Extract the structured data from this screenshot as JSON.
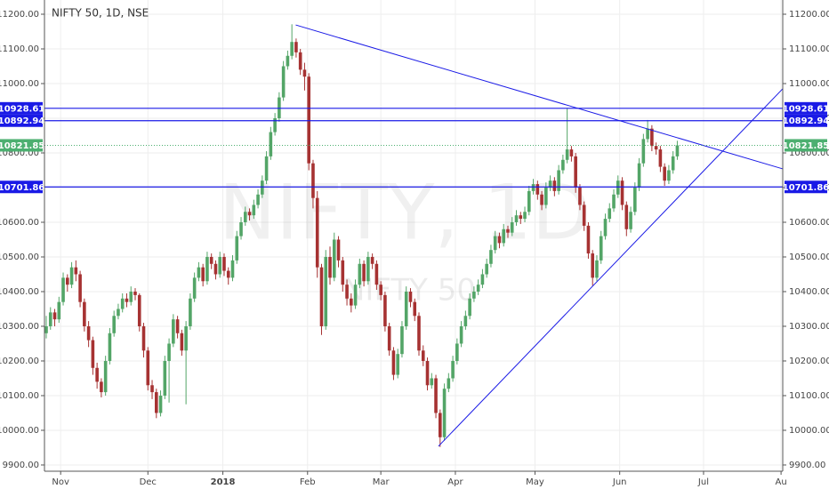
{
  "chart_data": {
    "type": "candlestick",
    "title": "NIFTY 50, 1D, NSE",
    "watermark": "NIFTY, 1D",
    "watermark_subtitle": "NIFTY 50",
    "up_color": "#53a567",
    "down_color": "#a63232",
    "line_color": "#1a1ae6",
    "last_color": "#4caf70",
    "grid": true,
    "ylim": [
      9882,
      11241
    ],
    "yticks": [
      {
        "value": 9900,
        "label": "9900.00"
      },
      {
        "value": 10000,
        "label": "10000.00"
      },
      {
        "value": 10100,
        "label": "10100.00"
      },
      {
        "value": 10200,
        "label": "10200.00"
      },
      {
        "value": 10300,
        "label": "10300.00"
      },
      {
        "value": 10400,
        "label": "10400.00"
      },
      {
        "value": 10500,
        "label": "10500.00"
      },
      {
        "value": 10600,
        "label": "10600.00"
      },
      {
        "value": 10700,
        "label": "10700.00"
      },
      {
        "value": 10800,
        "label": "10800.00"
      },
      {
        "value": 10900,
        "label": "10900.00"
      },
      {
        "value": 11000,
        "label": "11000.00"
      },
      {
        "value": 11100,
        "label": "11100.00"
      },
      {
        "value": 11200,
        "label": "11200.00"
      }
    ],
    "xlim": [
      -0.42,
      173.9
    ],
    "xticks": [
      {
        "value": 3.4,
        "label": "Nov"
      },
      {
        "value": 24,
        "label": "Dec"
      },
      {
        "value": 41.7,
        "label": "2018"
      },
      {
        "value": 61.7,
        "label": "Feb"
      },
      {
        "value": 79,
        "label": "Mar"
      },
      {
        "value": 96.6,
        "label": "Apr"
      },
      {
        "value": 115.4,
        "label": "May"
      },
      {
        "value": 135.4,
        "label": "Jun"
      },
      {
        "value": 155.2,
        "label": "Jul"
      },
      {
        "value": 173.5,
        "label": "Au"
      }
    ],
    "levels": [
      10928.61,
      10892.94,
      10701.86
    ],
    "last_price": 10821.85,
    "trendlines": [
      {
        "x": [
          58.9,
          173.9
        ],
        "y": [
          11169,
          10754
        ]
      },
      {
        "x": [
          92.6,
          173.9
        ],
        "y": [
          9954,
          10985
        ]
      }
    ],
    "ohlc": [
      [
        10280,
        10330,
        10265,
        10300
      ],
      [
        10300,
        10355,
        10290,
        10340
      ],
      [
        10340,
        10350,
        10300,
        10320
      ],
      [
        10320,
        10385,
        10310,
        10370
      ],
      [
        10370,
        10455,
        10360,
        10440
      ],
      [
        10440,
        10450,
        10400,
        10420
      ],
      [
        10420,
        10485,
        10410,
        10470
      ],
      [
        10470,
        10490,
        10430,
        10450
      ],
      [
        10450,
        10460,
        10355,
        10370
      ],
      [
        10370,
        10380,
        10285,
        10300
      ],
      [
        10300,
        10315,
        10240,
        10260
      ],
      [
        10260,
        10270,
        10160,
        10180
      ],
      [
        10180,
        10195,
        10120,
        10140
      ],
      [
        10140,
        10150,
        10095,
        10110
      ],
      [
        10110,
        10215,
        10100,
        10200
      ],
      [
        10200,
        10295,
        10190,
        10280
      ],
      [
        10280,
        10345,
        10270,
        10330
      ],
      [
        10330,
        10365,
        10320,
        10350
      ],
      [
        10350,
        10395,
        10340,
        10380
      ],
      [
        10380,
        10395,
        10355,
        10370
      ],
      [
        10370,
        10415,
        10360,
        10400
      ],
      [
        10400,
        10410,
        10375,
        10390
      ],
      [
        10390,
        10395,
        10285,
        10300
      ],
      [
        10300,
        10310,
        10210,
        10230
      ],
      [
        10230,
        10240,
        10115,
        10130
      ],
      [
        10130,
        10145,
        10090,
        10110
      ],
      [
        10110,
        10120,
        10035,
        10050
      ],
      [
        10050,
        10115,
        10040,
        10100
      ],
      [
        10100,
        10215,
        10090,
        10200
      ],
      [
        10200,
        10265,
        10080,
        10250
      ],
      [
        10250,
        10335,
        10240,
        10320
      ],
      [
        10320,
        10330,
        10265,
        10280
      ],
      [
        10280,
        10290,
        10215,
        10230
      ],
      [
        10230,
        10315,
        10075,
        10300
      ],
      [
        10300,
        10395,
        10290,
        10380
      ],
      [
        10380,
        10455,
        10370,
        10440
      ],
      [
        10440,
        10485,
        10430,
        10470
      ],
      [
        10470,
        10480,
        10415,
        10430
      ],
      [
        10430,
        10515,
        10420,
        10500
      ],
      [
        10500,
        10510,
        10465,
        10480
      ],
      [
        10480,
        10490,
        10435,
        10450
      ],
      [
        10450,
        10515,
        10440,
        10500
      ],
      [
        10500,
        10510,
        10445,
        10460
      ],
      [
        10460,
        10470,
        10420,
        10440
      ],
      [
        10440,
        10505,
        10430,
        10490
      ],
      [
        10490,
        10575,
        10480,
        10560
      ],
      [
        10560,
        10615,
        10550,
        10600
      ],
      [
        10600,
        10645,
        10590,
        10630
      ],
      [
        10630,
        10640,
        10605,
        10620
      ],
      [
        10620,
        10665,
        10610,
        10650
      ],
      [
        10650,
        10695,
        10640,
        10680
      ],
      [
        10680,
        10735,
        10670,
        10720
      ],
      [
        10720,
        10805,
        10710,
        10790
      ],
      [
        10790,
        10875,
        10780,
        10860
      ],
      [
        10860,
        10915,
        10850,
        10900
      ],
      [
        10900,
        10975,
        10890,
        10960
      ],
      [
        10960,
        11065,
        10950,
        11050
      ],
      [
        11050,
        11095,
        11040,
        11080
      ],
      [
        11080,
        11171,
        11070,
        11120
      ],
      [
        11120,
        11130,
        11075,
        11090
      ],
      [
        11090,
        11100,
        11025,
        11040
      ],
      [
        11040,
        11060,
        10980,
        11020
      ],
      [
        11020,
        11030,
        10750,
        10770
      ],
      [
        10770,
        10780,
        10640,
        10670
      ],
      [
        10670,
        10690,
        10440,
        10470
      ],
      [
        10470,
        10480,
        10275,
        10300
      ],
      [
        10300,
        10520,
        10290,
        10500
      ],
      [
        10500,
        10530,
        10420,
        10440
      ],
      [
        10440,
        10570,
        10430,
        10550
      ],
      [
        10550,
        10560,
        10470,
        10490
      ],
      [
        10490,
        10500,
        10400,
        10420
      ],
      [
        10420,
        10435,
        10360,
        10380
      ],
      [
        10380,
        10395,
        10340,
        10360
      ],
      [
        10360,
        10435,
        10350,
        10420
      ],
      [
        10420,
        10495,
        10410,
        10480
      ],
      [
        10480,
        10490,
        10415,
        10430
      ],
      [
        10430,
        10515,
        10420,
        10500
      ],
      [
        10500,
        10510,
        10465,
        10480
      ],
      [
        10480,
        10490,
        10405,
        10420
      ],
      [
        10420,
        10430,
        10375,
        10390
      ],
      [
        10390,
        10400,
        10285,
        10300
      ],
      [
        10300,
        10310,
        10215,
        10230
      ],
      [
        10230,
        10240,
        10145,
        10160
      ],
      [
        10160,
        10235,
        10150,
        10220
      ],
      [
        10220,
        10315,
        10210,
        10300
      ],
      [
        10300,
        10415,
        10290,
        10400
      ],
      [
        10400,
        10410,
        10355,
        10370
      ],
      [
        10370,
        10380,
        10315,
        10330
      ],
      [
        10330,
        10340,
        10215,
        10230
      ],
      [
        10230,
        10245,
        10185,
        10200
      ],
      [
        10200,
        10210,
        10115,
        10130
      ],
      [
        10130,
        10165,
        10120,
        10150
      ],
      [
        10150,
        10160,
        10035,
        10050
      ],
      [
        10050,
        10060,
        9952,
        9980
      ],
      [
        9980,
        10135,
        9970,
        10120
      ],
      [
        10120,
        10165,
        10110,
        10150
      ],
      [
        10150,
        10215,
        10140,
        10200
      ],
      [
        10200,
        10265,
        10190,
        10250
      ],
      [
        10250,
        10315,
        10240,
        10300
      ],
      [
        10300,
        10345,
        10290,
        10330
      ],
      [
        10330,
        10395,
        10320,
        10380
      ],
      [
        10380,
        10415,
        10370,
        10400
      ],
      [
        10400,
        10435,
        10390,
        10420
      ],
      [
        10420,
        10465,
        10410,
        10450
      ],
      [
        10450,
        10495,
        10440,
        10480
      ],
      [
        10480,
        10535,
        10470,
        10520
      ],
      [
        10520,
        10575,
        10510,
        10560
      ],
      [
        10560,
        10570,
        10525,
        10540
      ],
      [
        10540,
        10595,
        10530,
        10580
      ],
      [
        10580,
        10590,
        10555,
        10570
      ],
      [
        10570,
        10615,
        10560,
        10600
      ],
      [
        10600,
        10635,
        10590,
        10620
      ],
      [
        10620,
        10630,
        10595,
        10610
      ],
      [
        10610,
        10645,
        10600,
        10630
      ],
      [
        10630,
        10705,
        10620,
        10690
      ],
      [
        10690,
        10725,
        10680,
        10710
      ],
      [
        10710,
        10720,
        10665,
        10680
      ],
      [
        10680,
        10690,
        10635,
        10650
      ],
      [
        10650,
        10715,
        10640,
        10700
      ],
      [
        10700,
        10735,
        10690,
        10720
      ],
      [
        10720,
        10730,
        10675,
        10690
      ],
      [
        10690,
        10765,
        10680,
        10750
      ],
      [
        10750,
        10795,
        10740,
        10780
      ],
      [
        10780,
        10929,
        10770,
        10810
      ],
      [
        10810,
        10820,
        10775,
        10790
      ],
      [
        10790,
        10800,
        10685,
        10700
      ],
      [
        10700,
        10710,
        10635,
        10650
      ],
      [
        10650,
        10660,
        10575,
        10590
      ],
      [
        10590,
        10600,
        10495,
        10510
      ],
      [
        10510,
        10520,
        10417,
        10440
      ],
      [
        10440,
        10505,
        10430,
        10490
      ],
      [
        10490,
        10575,
        10480,
        10560
      ],
      [
        10560,
        10625,
        10550,
        10610
      ],
      [
        10610,
        10655,
        10600,
        10640
      ],
      [
        10640,
        10695,
        10630,
        10680
      ],
      [
        10680,
        10735,
        10670,
        10720
      ],
      [
        10720,
        10730,
        10635,
        10650
      ],
      [
        10650,
        10660,
        10560,
        10580
      ],
      [
        10580,
        10645,
        10570,
        10630
      ],
      [
        10630,
        10715,
        10620,
        10700
      ],
      [
        10700,
        10785,
        10690,
        10770
      ],
      [
        10770,
        10855,
        10760,
        10840
      ],
      [
        10840,
        10895,
        10830,
        10870
      ],
      [
        10870,
        10880,
        10805,
        10820
      ],
      [
        10820,
        10830,
        10795,
        10810
      ],
      [
        10810,
        10820,
        10745,
        10760
      ],
      [
        10760,
        10770,
        10705,
        10720
      ],
      [
        10720,
        10765,
        10710,
        10750
      ],
      [
        10750,
        10805,
        10740,
        10790
      ],
      [
        10790,
        10835,
        10780,
        10821.85
      ]
    ]
  }
}
